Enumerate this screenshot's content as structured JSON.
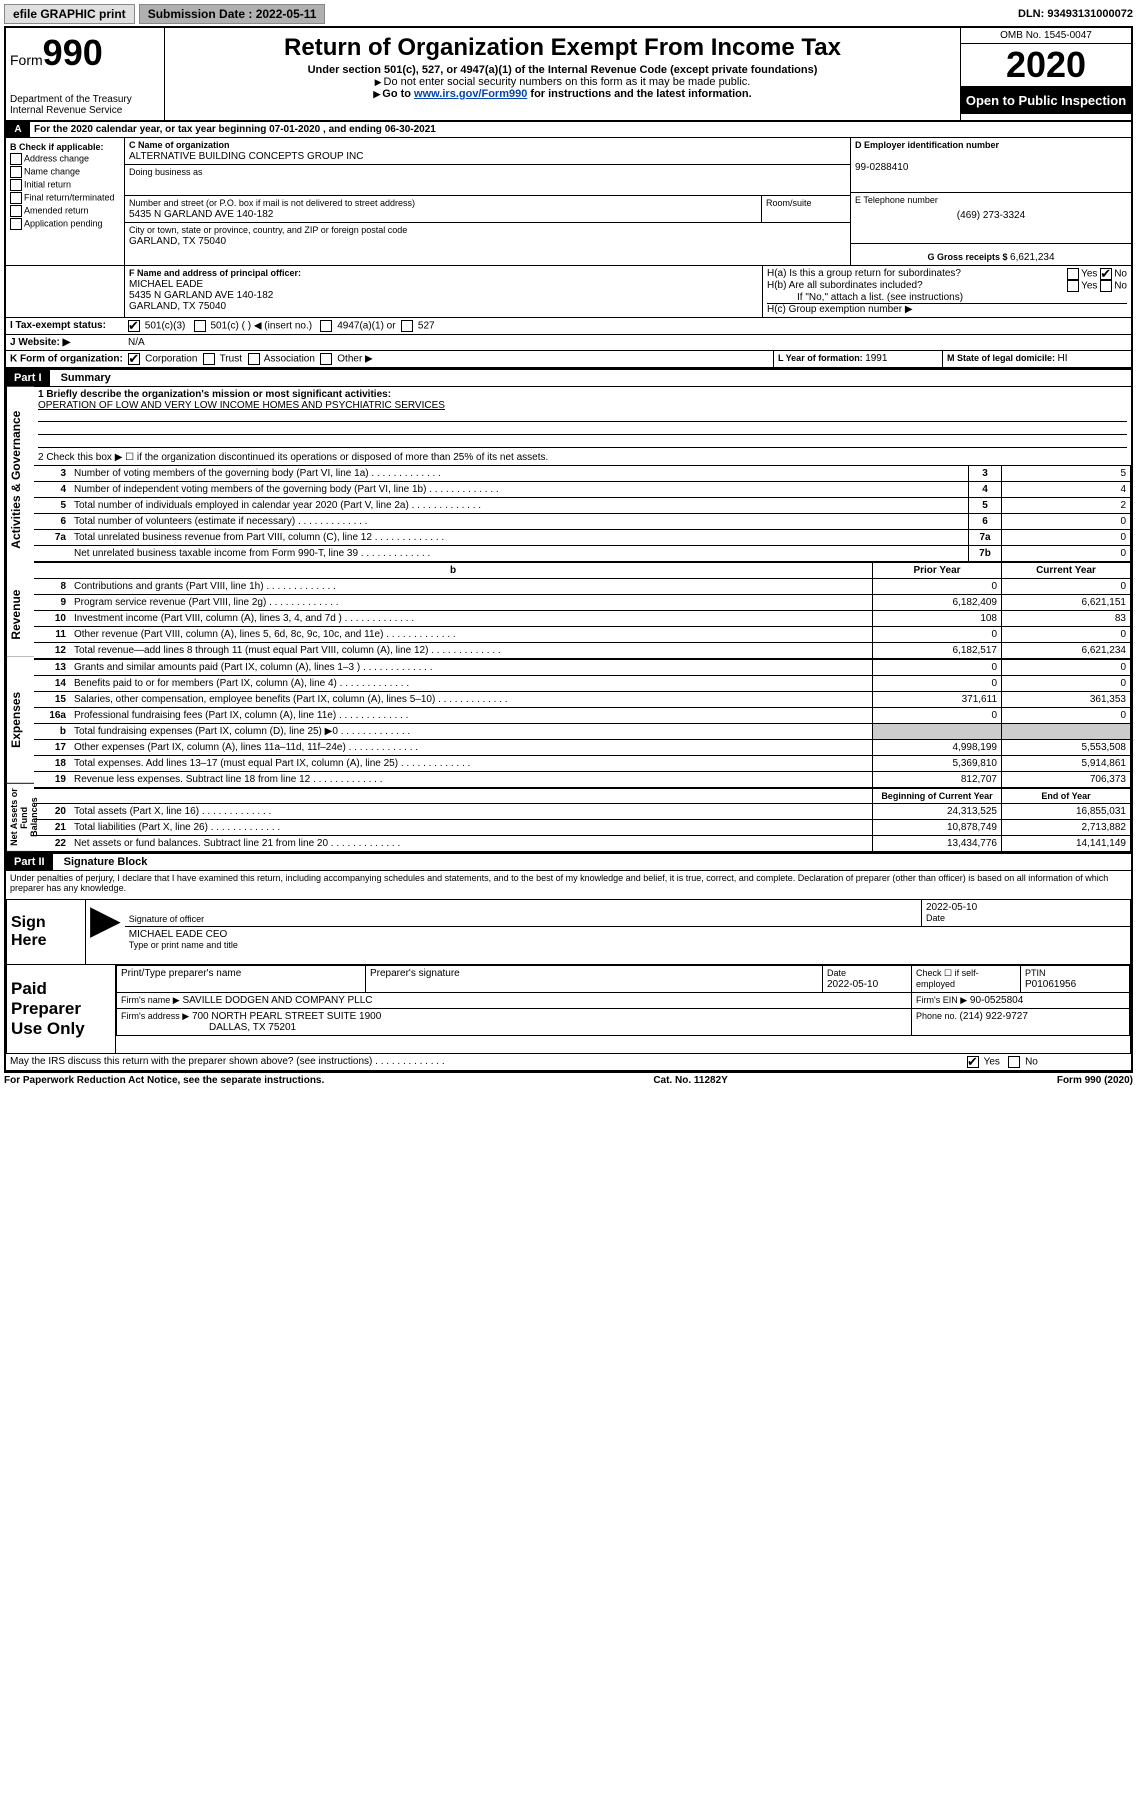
{
  "topbar": {
    "efile": "efile GRAPHIC print",
    "submission_label": "Submission Date : 2022-05-11",
    "dln": "DLN: 93493131000072"
  },
  "header": {
    "form_word": "Form",
    "form_num": "990",
    "dept": "Department of the Treasury\nInternal Revenue Service",
    "title": "Return of Organization Exempt From Income Tax",
    "subtitle": "Under section 501(c), 527, or 4947(a)(1) of the Internal Revenue Code (except private foundations)",
    "note1": "Do not enter social security numbers on this form as it may be made public.",
    "note2_pre": "Go to ",
    "note2_link": "www.irs.gov/Form990",
    "note2_post": " for instructions and the latest information.",
    "omb": "OMB No. 1545-0047",
    "year": "2020",
    "open": "Open to Public Inspection"
  },
  "lineA": "For the 2020 calendar year, or tax year beginning 07-01-2020     , and ending 06-30-2021",
  "sectionB": {
    "label": "B Check if applicable:",
    "items": [
      "Address change",
      "Name change",
      "Initial return",
      "Final return/terminated",
      "Amended return",
      "Application pending"
    ]
  },
  "sectionC": {
    "label": "C Name of organization",
    "name": "ALTERNATIVE BUILDING CONCEPTS GROUP INC",
    "dba_label": "Doing business as",
    "street_label": "Number and street (or P.O. box if mail is not delivered to street address)",
    "room_label": "Room/suite",
    "street": "5435 N GARLAND AVE 140-182",
    "city_label": "City or town, state or province, country, and ZIP or foreign postal code",
    "city": "GARLAND, TX  75040"
  },
  "sectionD": {
    "label": "D Employer identification number",
    "value": "99-0288410"
  },
  "sectionE": {
    "label": "E Telephone number",
    "value": "(469) 273-3324"
  },
  "sectionG": {
    "label": "G Gross receipts $ ",
    "value": "6,621,234"
  },
  "sectionF": {
    "label": "F  Name and address of principal officer:",
    "name": "MICHAEL EADE",
    "addr1": "5435 N GARLAND AVE 140-182",
    "addr2": "GARLAND, TX  75040"
  },
  "sectionH": {
    "a": "H(a)  Is this a group return for subordinates?",
    "b": "H(b)  Are all subordinates included?",
    "b_note": "If \"No,\" attach a list. (see instructions)",
    "c": "H(c)  Group exemption number ▶",
    "yes": "Yes",
    "no": "No"
  },
  "sectionI": {
    "label": "I  Tax-exempt status:",
    "opts": [
      "501(c)(3)",
      "501(c) (   ) ◀ (insert no.)",
      "4947(a)(1) or",
      "527"
    ]
  },
  "sectionJ": {
    "label": "J  Website: ▶",
    "value": "N/A"
  },
  "sectionK": {
    "label": "K Form of organization:",
    "opts": [
      "Corporation",
      "Trust",
      "Association",
      "Other ▶"
    ]
  },
  "sectionL": {
    "label": "L Year of formation: ",
    "value": "1991"
  },
  "sectionM": {
    "label": "M State of legal domicile: ",
    "value": "HI"
  },
  "partI": {
    "title": "Part I",
    "subtitle": "Summary",
    "line1_label": "1  Briefly describe the organization's mission or most significant activities:",
    "line1_value": "OPERATION OF LOW AND VERY LOW INCOME HOMES AND PSYCHIATRIC SERVICES",
    "line2": "2   Check this box ▶ ☐  if the organization discontinued its operations or disposed of more than 25% of its net assets.",
    "gov_lines": [
      {
        "n": "3",
        "desc": "Number of voting members of the governing body (Part VI, line 1a)",
        "box": "3",
        "val": "5"
      },
      {
        "n": "4",
        "desc": "Number of independent voting members of the governing body (Part VI, line 1b)",
        "box": "4",
        "val": "4"
      },
      {
        "n": "5",
        "desc": "Total number of individuals employed in calendar year 2020 (Part V, line 2a)",
        "box": "5",
        "val": "2"
      },
      {
        "n": "6",
        "desc": "Total number of volunteers (estimate if necessary)",
        "box": "6",
        "val": "0"
      },
      {
        "n": "7a",
        "desc": "Total unrelated business revenue from Part VIII, column (C), line 12",
        "box": "7a",
        "val": "0"
      },
      {
        "n": "",
        "desc": "Net unrelated business taxable income from Form 990-T, line 39",
        "box": "7b",
        "val": "0"
      }
    ],
    "col_prior": "Prior Year",
    "col_current": "Current Year",
    "rev_label": "Revenue",
    "rev_lines": [
      {
        "n": "8",
        "desc": "Contributions and grants (Part VIII, line 1h)",
        "prior": "0",
        "curr": "0"
      },
      {
        "n": "9",
        "desc": "Program service revenue (Part VIII, line 2g)",
        "prior": "6,182,409",
        "curr": "6,621,151"
      },
      {
        "n": "10",
        "desc": "Investment income (Part VIII, column (A), lines 3, 4, and 7d )",
        "prior": "108",
        "curr": "83"
      },
      {
        "n": "11",
        "desc": "Other revenue (Part VIII, column (A), lines 5, 6d, 8c, 9c, 10c, and 11e)",
        "prior": "0",
        "curr": "0"
      },
      {
        "n": "12",
        "desc": "Total revenue—add lines 8 through 11 (must equal Part VIII, column (A), line 12)",
        "prior": "6,182,517",
        "curr": "6,621,234"
      }
    ],
    "exp_label": "Expenses",
    "exp_lines": [
      {
        "n": "13",
        "desc": "Grants and similar amounts paid (Part IX, column (A), lines 1–3 )",
        "prior": "0",
        "curr": "0"
      },
      {
        "n": "14",
        "desc": "Benefits paid to or for members (Part IX, column (A), line 4)",
        "prior": "0",
        "curr": "0"
      },
      {
        "n": "15",
        "desc": "Salaries, other compensation, employee benefits (Part IX, column (A), lines 5–10)",
        "prior": "371,611",
        "curr": "361,353"
      },
      {
        "n": "16a",
        "desc": "Professional fundraising fees (Part IX, column (A), line 11e)",
        "prior": "0",
        "curr": "0"
      },
      {
        "n": "b",
        "desc": "Total fundraising expenses (Part IX, column (D), line 25) ▶0",
        "prior": "",
        "curr": "",
        "shaded": true
      },
      {
        "n": "17",
        "desc": "Other expenses (Part IX, column (A), lines 11a–11d, 11f–24e)",
        "prior": "4,998,199",
        "curr": "5,553,508"
      },
      {
        "n": "18",
        "desc": "Total expenses. Add lines 13–17 (must equal Part IX, column (A), line 25)",
        "prior": "5,369,810",
        "curr": "5,914,861"
      },
      {
        "n": "19",
        "desc": "Revenue less expenses. Subtract line 18 from line 12",
        "prior": "812,707",
        "curr": "706,373"
      }
    ],
    "net_label": "Net Assets or Fund Balances",
    "net_col1": "Beginning of Current Year",
    "net_col2": "End of Year",
    "net_lines": [
      {
        "n": "20",
        "desc": "Total assets (Part X, line 16)",
        "prior": "24,313,525",
        "curr": "16,855,031"
      },
      {
        "n": "21",
        "desc": "Total liabilities (Part X, line 26)",
        "prior": "10,878,749",
        "curr": "2,713,882"
      },
      {
        "n": "22",
        "desc": "Net assets or fund balances. Subtract line 21 from line 20",
        "prior": "13,434,776",
        "curr": "14,141,149"
      }
    ]
  },
  "partII": {
    "title": "Part II",
    "subtitle": "Signature Block",
    "declaration": "Under penalties of perjury, I declare that I have examined this return, including accompanying schedules and statements, and to the best of my knowledge and belief, it is true, correct, and complete. Declaration of preparer (other than officer) is based on all information of which preparer has any knowledge."
  },
  "sign": {
    "label": "Sign Here",
    "sig_of_officer": "Signature of officer",
    "date_label": "Date",
    "date": "2022-05-10",
    "name": "MICHAEL EADE  CEO",
    "name_label": "Type or print name and title"
  },
  "paid": {
    "label": "Paid Preparer Use Only",
    "col1": "Print/Type preparer's name",
    "col2": "Preparer's signature",
    "col3_label": "Date",
    "col3": "2022-05-10",
    "col4": "Check ☐ if self-employed",
    "col5_label": "PTIN",
    "col5": "P01061956",
    "firm_name_label": "Firm's name      ▶",
    "firm_name": "SAVILLE DODGEN AND COMPANY PLLC",
    "firm_ein_label": "Firm's EIN ▶",
    "firm_ein": "90-0525804",
    "firm_addr_label": "Firm's address ▶",
    "firm_addr1": "700 NORTH PEARL STREET SUITE 1900",
    "firm_addr2": "DALLAS, TX  75201",
    "phone_label": "Phone no. ",
    "phone": "(214) 922-9727",
    "discuss": "May the IRS discuss this return with the preparer shown above? (see instructions)",
    "yes": "Yes",
    "no": "No"
  },
  "footer": {
    "left": "For Paperwork Reduction Act Notice, see the separate instructions.",
    "center": "Cat. No. 11282Y",
    "right": "Form 990 (2020)"
  }
}
